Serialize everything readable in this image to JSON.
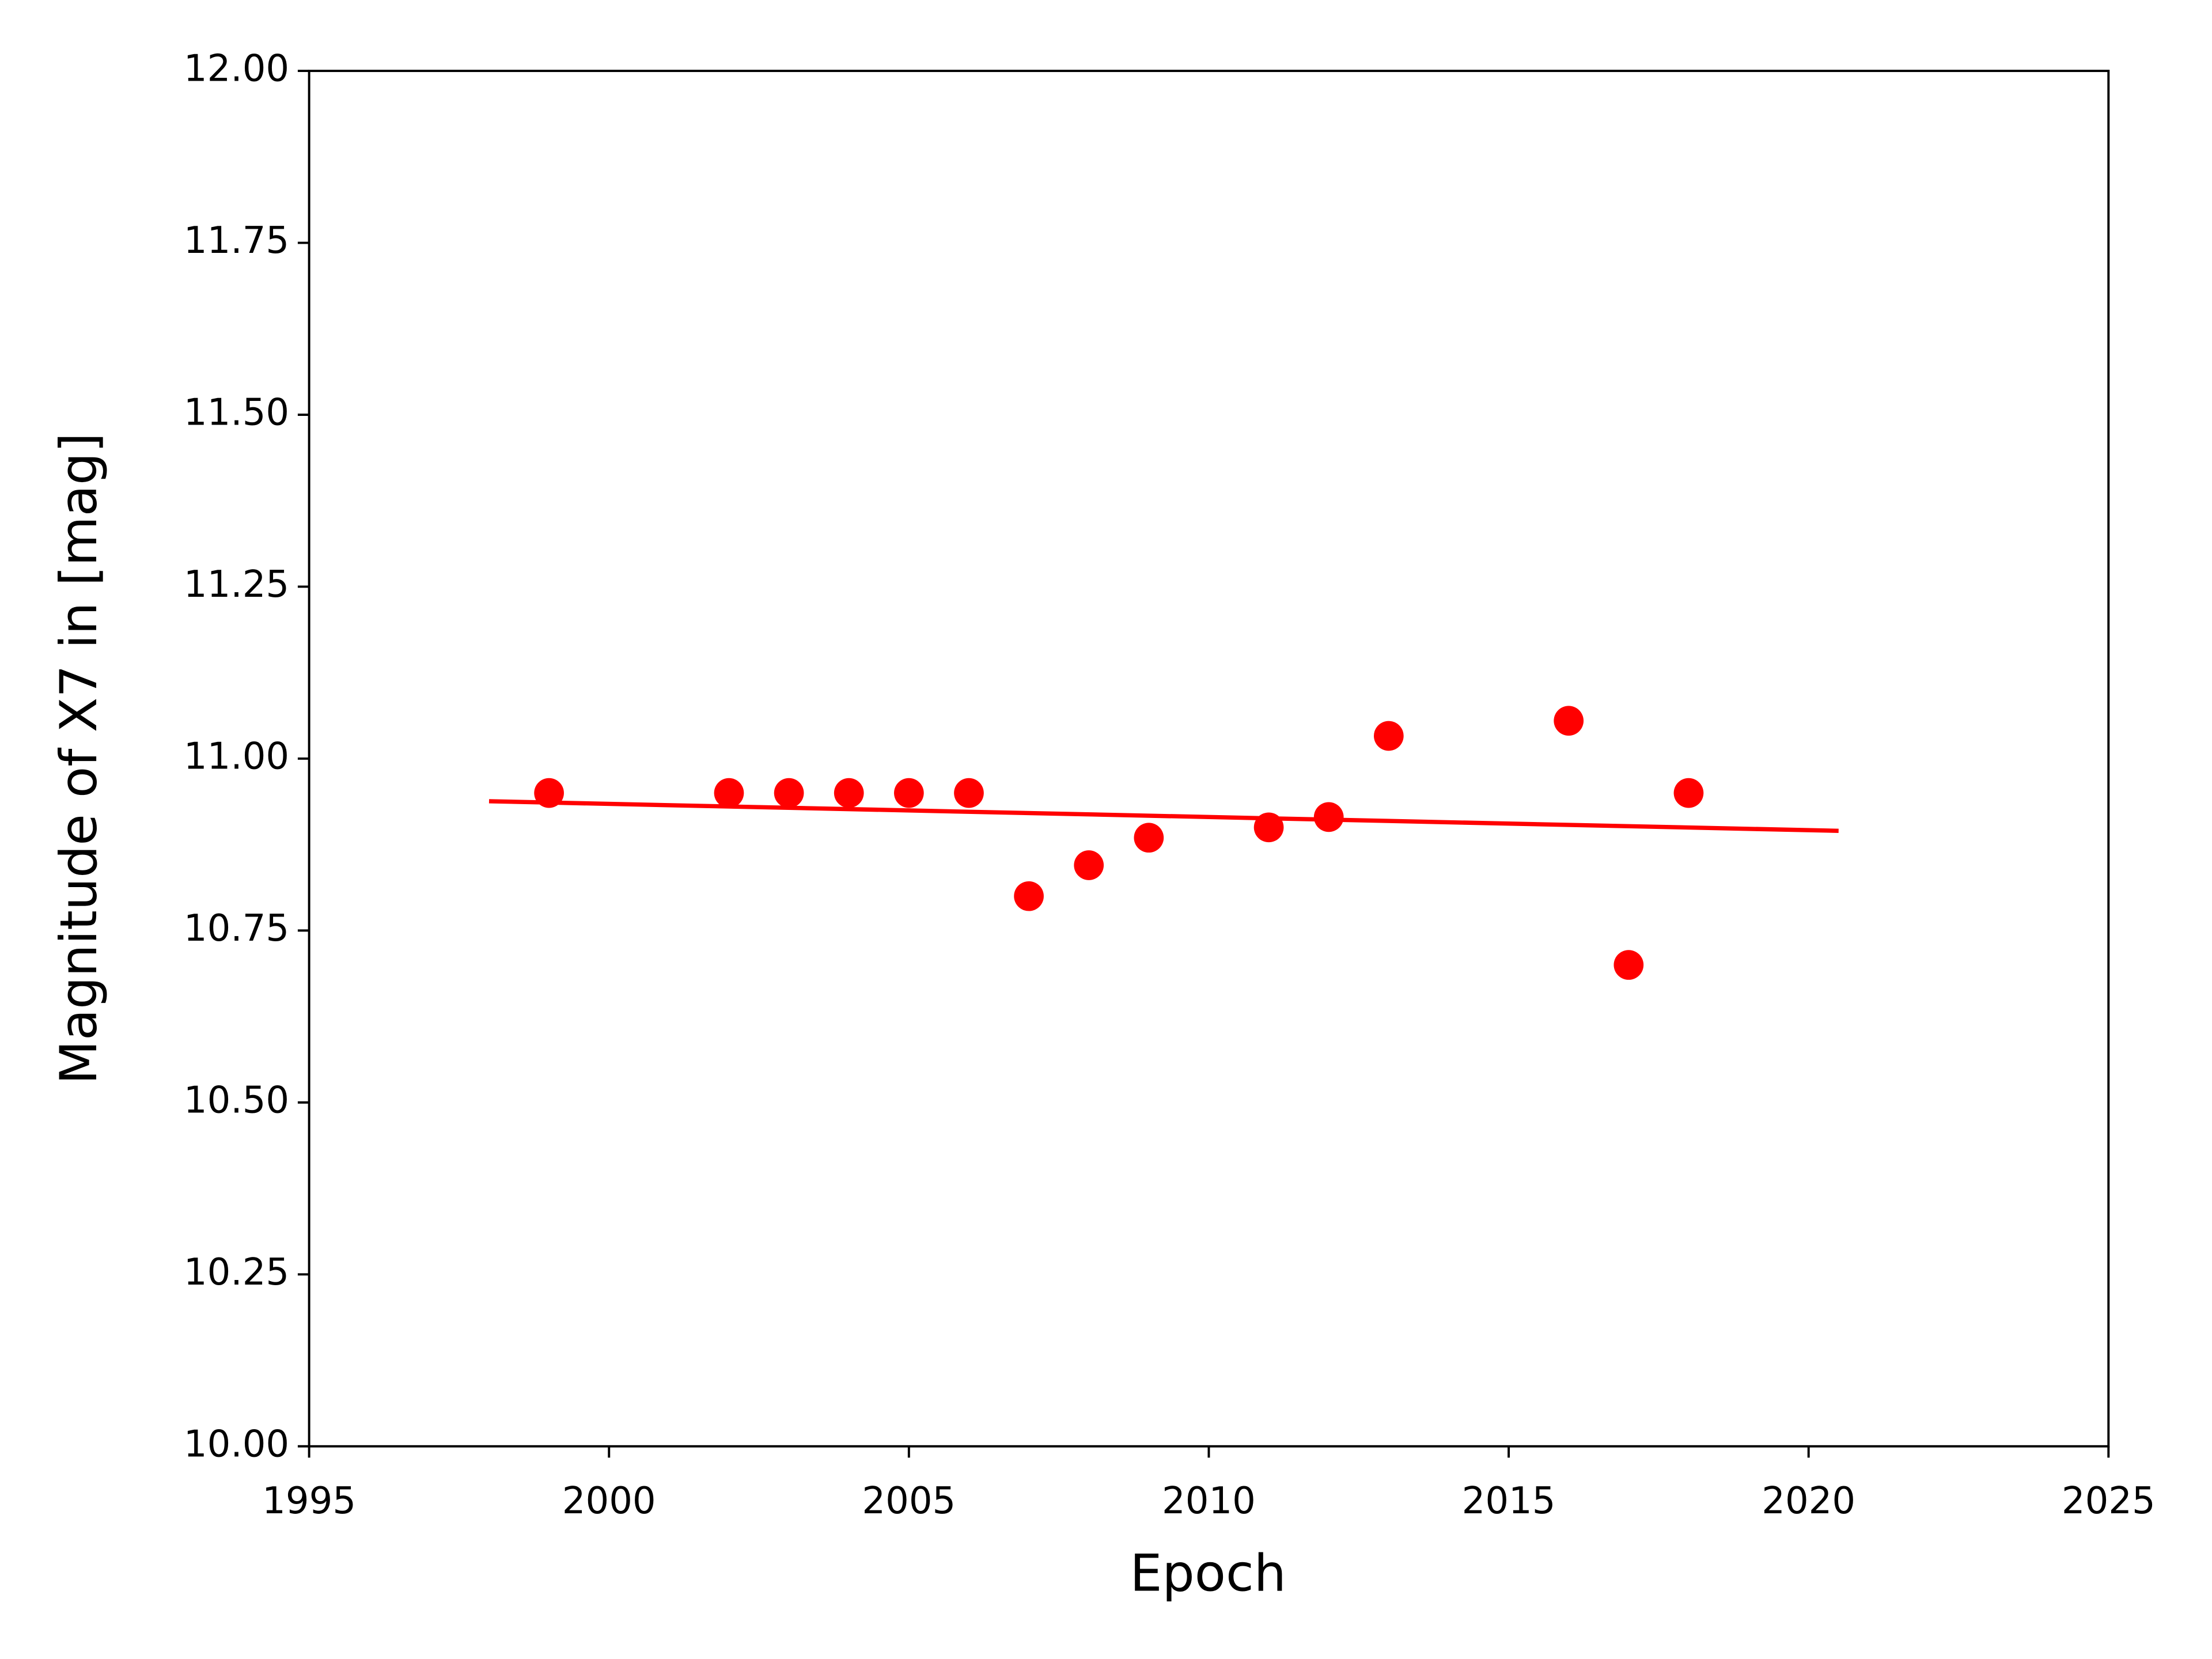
{
  "chart_data": {
    "type": "scatter",
    "x_label": "Epoch",
    "y_label": "Magnitude of X7 in [mag]",
    "x": [
      1999,
      2002,
      2003,
      2004,
      2005,
      2006,
      2007,
      2008,
      2009,
      2011,
      2012,
      2013,
      2016,
      2017,
      2018
    ],
    "values": [
      10.95,
      10.95,
      10.95,
      10.95,
      10.95,
      10.95,
      10.8,
      10.845,
      10.885,
      10.9,
      10.915,
      11.033,
      11.055,
      10.7,
      10.95
    ],
    "color": "#ff0000",
    "lines": [
      {
        "x": [
          1998,
          2020.5
        ],
        "values": [
          10.938,
          10.895
        ],
        "color": "#ff0000"
      }
    ],
    "xlim": [
      1995,
      2025
    ],
    "xticks": [
      1995,
      2000,
      2005,
      2010,
      2015,
      2020,
      2025
    ],
    "ylim": [
      10,
      12
    ],
    "yticks": [
      {
        "value": 10,
        "label": "10.00"
      },
      {
        "value": 10.25,
        "label": "10.25"
      },
      {
        "value": 10.5,
        "label": "10.50"
      },
      {
        "value": 10.75,
        "label": "10.75"
      },
      {
        "value": 11,
        "label": "11.00"
      },
      {
        "value": 11.25,
        "label": "11.25"
      },
      {
        "value": 11.5,
        "label": "11.50"
      },
      {
        "value": 11.75,
        "label": "11.75"
      },
      {
        "value": 12,
        "label": "12.00"
      }
    ],
    "grid": false
  }
}
